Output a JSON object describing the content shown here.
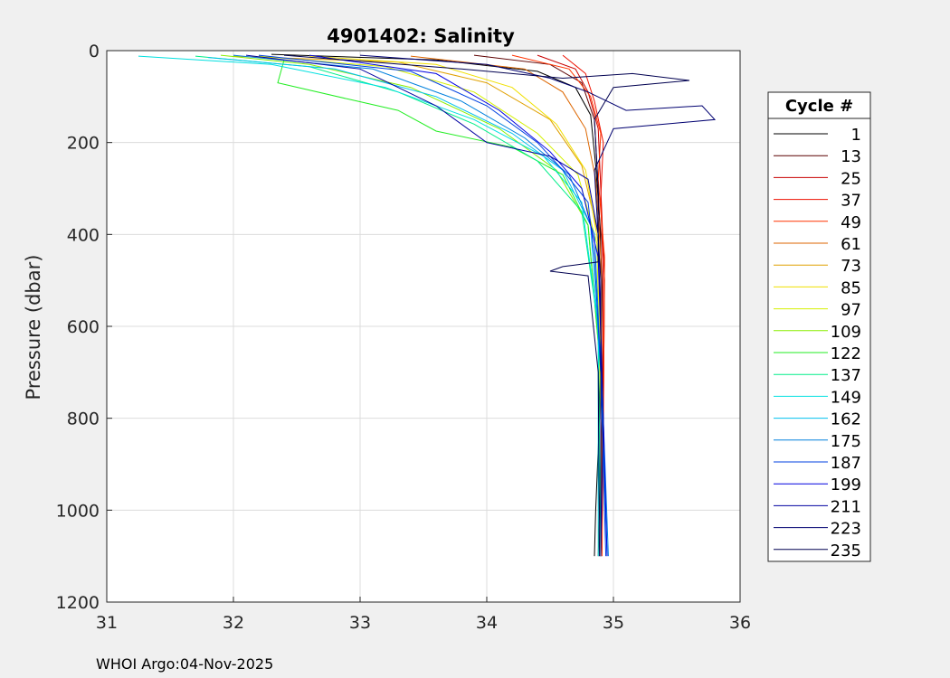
{
  "chart_data": {
    "type": "line",
    "title": "4901402:  Salinity",
    "xlabel": "",
    "ylabel": "Pressure (dbar)",
    "xlim": [
      31,
      36
    ],
    "ylim": [
      0,
      1200
    ],
    "y_reversed": true,
    "grid": true,
    "xticks": [
      "31",
      "32",
      "33",
      "34",
      "35",
      "36"
    ],
    "yticks": [
      "0",
      "200",
      "400",
      "600",
      "800",
      "1000",
      "1200"
    ],
    "legend_title": "Cycle #",
    "legend_position": "right",
    "legend": [
      {
        "label": "1",
        "color": "#000000"
      },
      {
        "label": "13",
        "color": "#5c0000"
      },
      {
        "label": "25",
        "color": "#c80000"
      },
      {
        "label": "37",
        "color": "#ee1100"
      },
      {
        "label": "49",
        "color": "#ff3300"
      },
      {
        "label": "61",
        "color": "#dd6600"
      },
      {
        "label": "73",
        "color": "#e0a000"
      },
      {
        "label": "85",
        "color": "#f0e000"
      },
      {
        "label": "97",
        "color": "#d4f000"
      },
      {
        "label": "109",
        "color": "#88ee00"
      },
      {
        "label": "122",
        "color": "#22ee22"
      },
      {
        "label": "137",
        "color": "#00ee88"
      },
      {
        "label": "149",
        "color": "#00e0e0"
      },
      {
        "label": "162",
        "color": "#00c0ee"
      },
      {
        "label": "175",
        "color": "#0080dd"
      },
      {
        "label": "187",
        "color": "#0040e0"
      },
      {
        "label": "199",
        "color": "#0000e0"
      },
      {
        "label": "211",
        "color": "#0000a0"
      },
      {
        "label": "223",
        "color": "#000070"
      },
      {
        "label": "235",
        "color": "#000050"
      }
    ],
    "series": [
      {
        "color": "#000000",
        "points": [
          [
            32.3,
            8
          ],
          [
            33.6,
            20
          ],
          [
            34.4,
            45
          ],
          [
            34.7,
            80
          ],
          [
            34.82,
            140
          ],
          [
            34.86,
            250
          ],
          [
            34.9,
            400
          ],
          [
            34.9,
            600
          ],
          [
            34.89,
            800
          ],
          [
            34.86,
            1000
          ],
          [
            34.85,
            1100
          ]
        ]
      },
      {
        "color": "#5c0000",
        "points": [
          [
            33.9,
            10
          ],
          [
            34.5,
            30
          ],
          [
            34.75,
            70
          ],
          [
            34.85,
            150
          ],
          [
            34.88,
            300
          ],
          [
            34.91,
            500
          ],
          [
            34.92,
            700
          ],
          [
            34.9,
            900
          ],
          [
            34.88,
            1100
          ]
        ]
      },
      {
        "color": "#c80000",
        "points": [
          [
            34.4,
            10
          ],
          [
            34.7,
            40
          ],
          [
            34.8,
            90
          ],
          [
            34.88,
            170
          ],
          [
            34.9,
            300
          ],
          [
            34.93,
            500
          ],
          [
            34.92,
            800
          ],
          [
            34.9,
            1100
          ]
        ]
      },
      {
        "color": "#ee1100",
        "points": [
          [
            34.6,
            10
          ],
          [
            34.78,
            50
          ],
          [
            34.85,
            110
          ],
          [
            34.92,
            200
          ],
          [
            34.9,
            320
          ],
          [
            34.92,
            500
          ],
          [
            34.91,
            900
          ],
          [
            34.9,
            1100
          ]
        ]
      },
      {
        "color": "#ff3300",
        "points": [
          [
            34.2,
            10
          ],
          [
            34.65,
            40
          ],
          [
            34.82,
            100
          ],
          [
            34.9,
            180
          ],
          [
            34.88,
            280
          ],
          [
            34.93,
            450
          ],
          [
            34.92,
            850
          ],
          [
            34.91,
            1100
          ]
        ]
      },
      {
        "color": "#dd6600",
        "points": [
          [
            33.4,
            12
          ],
          [
            34.3,
            40
          ],
          [
            34.6,
            90
          ],
          [
            34.78,
            170
          ],
          [
            34.86,
            280
          ],
          [
            34.9,
            450
          ],
          [
            34.91,
            800
          ],
          [
            34.9,
            1100
          ]
        ]
      },
      {
        "color": "#e0a000",
        "points": [
          [
            32.0,
            12
          ],
          [
            33.3,
            25
          ],
          [
            34.0,
            70
          ],
          [
            34.5,
            150
          ],
          [
            34.75,
            250
          ],
          [
            34.88,
            400
          ],
          [
            34.9,
            700
          ],
          [
            34.9,
            1100
          ]
        ]
      },
      {
        "color": "#f0e000",
        "points": [
          [
            32.6,
            12
          ],
          [
            33.6,
            30
          ],
          [
            34.2,
            80
          ],
          [
            34.55,
            160
          ],
          [
            34.78,
            260
          ],
          [
            34.88,
            420
          ],
          [
            34.9,
            750
          ],
          [
            34.9,
            1100
          ]
        ]
      },
      {
        "color": "#d4f000",
        "points": [
          [
            32.2,
            12
          ],
          [
            33.2,
            35
          ],
          [
            33.9,
            90
          ],
          [
            34.4,
            180
          ],
          [
            34.72,
            270
          ],
          [
            34.87,
            420
          ],
          [
            34.9,
            800
          ],
          [
            34.9,
            1100
          ]
        ]
      },
      {
        "color": "#88ee00",
        "points": [
          [
            31.9,
            10
          ],
          [
            32.6,
            30
          ],
          [
            33.4,
            80
          ],
          [
            34.1,
            170
          ],
          [
            34.55,
            260
          ],
          [
            34.8,
            380
          ],
          [
            34.9,
            700
          ],
          [
            34.9,
            1100
          ]
        ]
      },
      {
        "color": "#22ee22",
        "points": [
          [
            32.4,
            20
          ],
          [
            32.35,
            70
          ],
          [
            32.9,
            105
          ],
          [
            33.3,
            130
          ],
          [
            33.6,
            175
          ],
          [
            34.2,
            210
          ],
          [
            34.6,
            270
          ],
          [
            34.8,
            380
          ],
          [
            34.9,
            700
          ],
          [
            34.9,
            1100
          ]
        ]
      },
      {
        "color": "#00ee88",
        "points": [
          [
            31.7,
            12
          ],
          [
            32.6,
            35
          ],
          [
            33.3,
            90
          ],
          [
            33.9,
            160
          ],
          [
            34.4,
            240
          ],
          [
            34.75,
            350
          ],
          [
            34.88,
            600
          ],
          [
            34.9,
            1100
          ]
        ]
      },
      {
        "color": "#00e0e0",
        "points": [
          [
            31.25,
            12
          ],
          [
            32.3,
            30
          ],
          [
            33.2,
            80
          ],
          [
            33.9,
            150
          ],
          [
            34.45,
            230
          ],
          [
            34.75,
            330
          ],
          [
            34.88,
            600
          ],
          [
            34.88,
            1100
          ]
        ]
      },
      {
        "color": "#00c0ee",
        "points": [
          [
            31.8,
            15
          ],
          [
            32.8,
            40
          ],
          [
            33.6,
            100
          ],
          [
            34.2,
            180
          ],
          [
            34.6,
            260
          ],
          [
            34.82,
            380
          ],
          [
            34.9,
            700
          ],
          [
            34.95,
            1100
          ]
        ]
      },
      {
        "color": "#0080dd",
        "points": [
          [
            32.0,
            10
          ],
          [
            33.1,
            40
          ],
          [
            33.8,
            110
          ],
          [
            34.3,
            190
          ],
          [
            34.65,
            270
          ],
          [
            34.85,
            400
          ],
          [
            34.92,
            800
          ],
          [
            34.96,
            1100
          ]
        ]
      },
      {
        "color": "#0040e0",
        "points": [
          [
            32.2,
            10
          ],
          [
            33.4,
            45
          ],
          [
            34.0,
            120
          ],
          [
            34.4,
            200
          ],
          [
            34.6,
            260
          ],
          [
            34.8,
            330
          ],
          [
            34.85,
            450
          ],
          [
            34.9,
            700
          ],
          [
            34.94,
            1100
          ]
        ]
      },
      {
        "color": "#0000e0",
        "points": [
          [
            32.6,
            10
          ],
          [
            33.6,
            50
          ],
          [
            34.1,
            130
          ],
          [
            34.5,
            220
          ],
          [
            34.75,
            300
          ],
          [
            34.88,
            450
          ],
          [
            34.92,
            800
          ],
          [
            34.95,
            1100
          ]
        ]
      },
      {
        "color": "#0000a0",
        "points": [
          [
            32.1,
            10
          ],
          [
            33.0,
            40
          ],
          [
            33.6,
            120
          ],
          [
            34.0,
            200
          ],
          [
            34.5,
            230
          ],
          [
            34.8,
            280
          ],
          [
            34.88,
            400
          ],
          [
            34.92,
            800
          ],
          [
            34.9,
            1100
          ]
        ]
      },
      {
        "color": "#000070",
        "points": [
          [
            33.0,
            10
          ],
          [
            34.0,
            30
          ],
          [
            34.5,
            60
          ],
          [
            34.8,
            90
          ],
          [
            35.1,
            130
          ],
          [
            35.7,
            120
          ],
          [
            35.8,
            150
          ],
          [
            35.0,
            170
          ],
          [
            34.85,
            260
          ],
          [
            34.9,
            500
          ],
          [
            34.9,
            1100
          ]
        ]
      },
      {
        "color": "#000050",
        "points": [
          [
            32.4,
            10
          ],
          [
            33.8,
            40
          ],
          [
            34.6,
            60
          ],
          [
            35.15,
            50
          ],
          [
            35.6,
            65
          ],
          [
            35.0,
            80
          ],
          [
            34.85,
            150
          ],
          [
            34.88,
            300
          ],
          [
            34.88,
            460
          ],
          [
            34.6,
            470
          ],
          [
            34.5,
            480
          ],
          [
            34.8,
            490
          ],
          [
            34.88,
            700
          ],
          [
            34.89,
            1100
          ]
        ]
      }
    ]
  },
  "footer": "WHOI Argo:04-Nov-2025"
}
